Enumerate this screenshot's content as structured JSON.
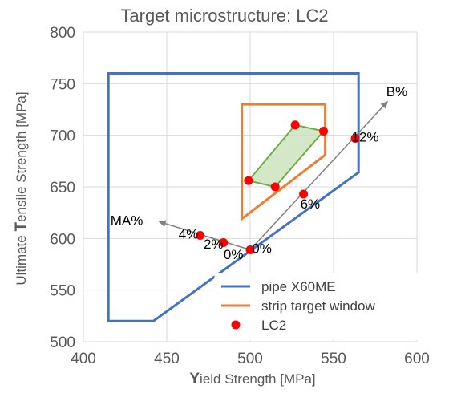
{
  "chart_data": {
    "type": "scatter",
    "title": "Target microstructure: LC2",
    "xlabel": {
      "initial": "Y",
      "rest": "ield Strength [MPa]"
    },
    "ylabel": {
      "prefix": "Ultimate ",
      "initial": "T",
      "rest": "ensile Strength [MPa]"
    },
    "xlim": [
      400,
      600
    ],
    "ylim": [
      500,
      800
    ],
    "xticks": [
      400,
      450,
      500,
      550,
      600
    ],
    "yticks": [
      500,
      550,
      600,
      650,
      700,
      750,
      800
    ],
    "grid": true,
    "colors": {
      "pipe": "#4472c4",
      "strip": "#ed7d31",
      "lc2": "#ff0000",
      "region_fill": "#c6e0b4",
      "region_stroke": "#70ad47",
      "arrow": "#808080",
      "grid": "#d9d9d9"
    },
    "series": [
      {
        "name": "pipe X60ME",
        "kind": "polygon",
        "x": [
          415,
          415,
          565,
          565,
          442
        ],
        "y": [
          520,
          760,
          760,
          664,
          520
        ]
      },
      {
        "name": "strip target window",
        "kind": "polygon",
        "x": [
          495,
          495,
          545,
          545
        ],
        "y": [
          619,
          730,
          730,
          681
        ]
      },
      {
        "name": "LC2",
        "kind": "points",
        "x": [
          470,
          484,
          500,
          499,
          515,
          527,
          532,
          544,
          563
        ],
        "y": [
          603,
          596,
          589,
          656,
          650,
          710,
          643,
          704,
          697
        ]
      }
    ],
    "region": {
      "x": [
        499,
        527,
        544,
        515
      ],
      "y": [
        656,
        710,
        704,
        650
      ]
    },
    "arrows": [
      {
        "label": "MA%",
        "from": [
          500,
          589
        ],
        "to": [
          446,
          616
        ]
      },
      {
        "label": "B%",
        "from": [
          500,
          589
        ],
        "to": [
          582,
          732
        ]
      }
    ],
    "annotations": [
      {
        "text": "4%",
        "x": 463,
        "y": 600
      },
      {
        "text": "2%",
        "x": 478,
        "y": 590
      },
      {
        "text": "0%",
        "x": 490,
        "y": 580
      },
      {
        "text": "0%",
        "x": 507,
        "y": 586
      },
      {
        "text": "6%",
        "x": 536,
        "y": 629
      },
      {
        "text": "12%",
        "x": 569,
        "y": 694
      },
      {
        "text": "MA%",
        "x": 426,
        "y": 613
      },
      {
        "text": "B%",
        "x": 588,
        "y": 738
      }
    ],
    "legend": {
      "position": "bottom-right",
      "entries": [
        "pipe X60ME",
        "strip target window",
        "LC2"
      ]
    }
  }
}
